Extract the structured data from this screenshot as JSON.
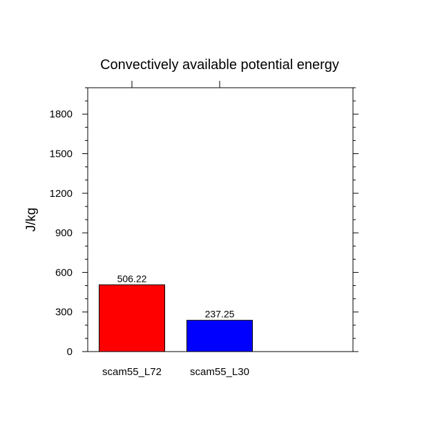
{
  "chart_data": {
    "type": "bar",
    "title": "Convectively available potential energy",
    "xlabel": "",
    "ylabel": "J/kg",
    "categories": [
      "scam55_L72",
      "scam55_L30"
    ],
    "values": [
      506.22,
      237.25
    ],
    "value_labels": [
      "506.22",
      "237.25"
    ],
    "colors": [
      "#ff0000",
      "#0000ff"
    ],
    "ylim": [
      0,
      2000
    ],
    "yticks": [
      0,
      300,
      600,
      900,
      1200,
      1500,
      1800
    ],
    "ytick_labels": [
      "0",
      "300",
      "600",
      "900",
      "1200",
      "1500",
      "1800"
    ],
    "minor_tick_step": 100,
    "grid": false,
    "legend": "none"
  }
}
